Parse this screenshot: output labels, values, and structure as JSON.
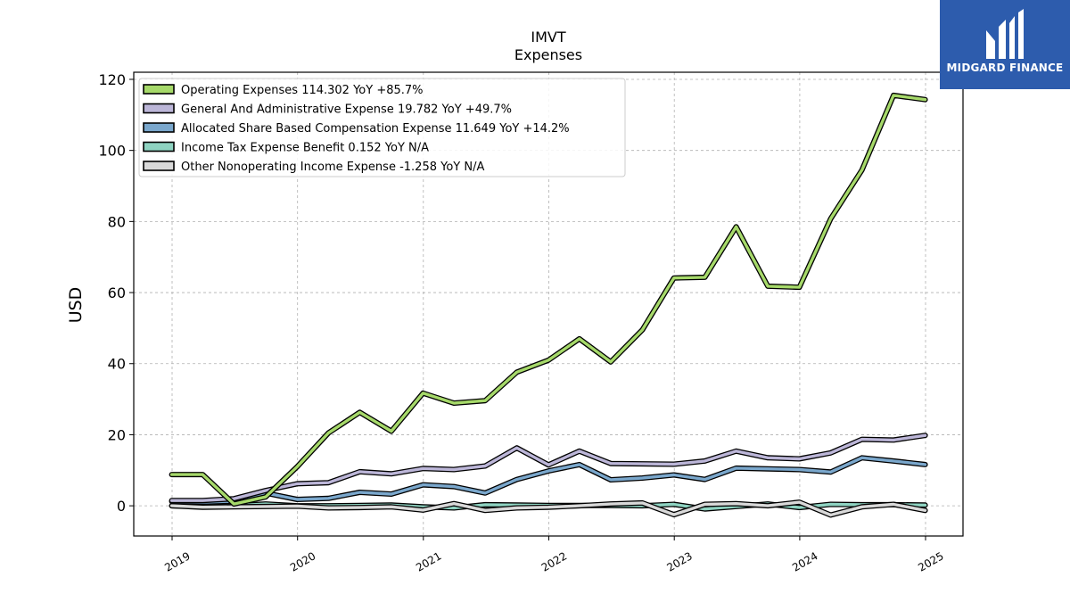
{
  "chart_data": {
    "type": "line",
    "title": "IMVT",
    "subtitle": "Expenses",
    "ylabel": "USD",
    "ylim": [
      -8.5,
      122
    ],
    "yticks": [
      0,
      20,
      40,
      60,
      80,
      100,
      120
    ],
    "xticks": [
      "2019",
      "2020",
      "2021",
      "2022",
      "2023",
      "2024",
      "2025"
    ],
    "grid": true,
    "legend_position": "top-left",
    "x": [
      "2018-12-31",
      "2019-03-31",
      "2019-06-30",
      "2019-09-30",
      "2019-12-31",
      "2020-03-31",
      "2020-06-30",
      "2020-09-30",
      "2020-12-31",
      "2021-03-31",
      "2021-06-30",
      "2021-09-30",
      "2021-12-31",
      "2022-03-31",
      "2022-06-30",
      "2022-09-30",
      "2022-12-31",
      "2023-03-31",
      "2023-06-30",
      "2023-09-30",
      "2023-12-31",
      "2024-03-31",
      "2024-06-30",
      "2024-09-30",
      "2024-12-31"
    ],
    "series": [
      {
        "name": "Operating Expenses",
        "legend": "Operating Expenses  114.302 YoY +85.7%",
        "color": "#a6d96a",
        "values": [
          8.8,
          8.8,
          0.5,
          2.5,
          11.0,
          20.5,
          26.3,
          21.0,
          31.7,
          28.9,
          29.6,
          37.6,
          41.0,
          47.0,
          40.5,
          49.5,
          64.1,
          64.3,
          78.5,
          61.8,
          61.5,
          80.8,
          94.5,
          115.5,
          114.3
        ]
      },
      {
        "name": "General And Administrative Expense",
        "legend": "General And Administrative Expense  19.782 YoY +49.7%",
        "color": "#bcb6d8",
        "values": [
          1.5,
          1.5,
          2.0,
          4.3,
          6.2,
          6.5,
          9.6,
          9.0,
          10.5,
          10.2,
          11.2,
          16.3,
          11.5,
          15.4,
          11.9,
          11.8,
          11.7,
          12.6,
          15.4,
          13.5,
          13.2,
          14.9,
          18.7,
          18.5,
          19.8
        ]
      },
      {
        "name": "Allocated Share Based Compensation Expense",
        "legend": "Allocated Share Based Compensation Expense  11.649 YoY +14.2%",
        "color": "#7aa7cc",
        "values": [
          1.2,
          1.0,
          1.3,
          3.6,
          1.8,
          2.1,
          3.8,
          3.3,
          5.9,
          5.4,
          3.6,
          7.4,
          9.8,
          11.6,
          7.3,
          7.8,
          8.7,
          7.4,
          10.6,
          10.4,
          10.2,
          9.5,
          13.5,
          12.6,
          11.6
        ]
      },
      {
        "name": "Income Tax Expense Benefit",
        "legend": "Income Tax Expense Benefit  0.152 YoY N/A",
        "color": "#8ed3c1",
        "values": [
          0.0,
          0.0,
          0.0,
          0.5,
          0.0,
          0.0,
          0.1,
          0.2,
          -0.3,
          -0.6,
          0.3,
          0.2,
          0.1,
          0.1,
          0.1,
          0.0,
          0.4,
          -0.9,
          -0.2,
          0.5,
          -0.5,
          0.4,
          0.3,
          0.3,
          0.2
        ]
      },
      {
        "name": "Other Nonoperating Income Expense",
        "legend": "Other Nonoperating Income Expense  -1.258 YoY N/A",
        "color": "#d9d9d9",
        "values": [
          0.0,
          -0.4,
          -0.3,
          -0.2,
          -0.1,
          -0.6,
          -0.5,
          -0.3,
          -1.2,
          0.6,
          -1.3,
          -0.6,
          -0.4,
          0.0,
          0.5,
          0.8,
          -2.5,
          0.4,
          0.6,
          0.0,
          1.0,
          -2.6,
          -0.3,
          0.4,
          -1.3
        ]
      }
    ]
  },
  "logo": {
    "text": "MIDGARD FINANCE",
    "icon": "midgard-logo-icon",
    "background": "#2d5cad"
  }
}
